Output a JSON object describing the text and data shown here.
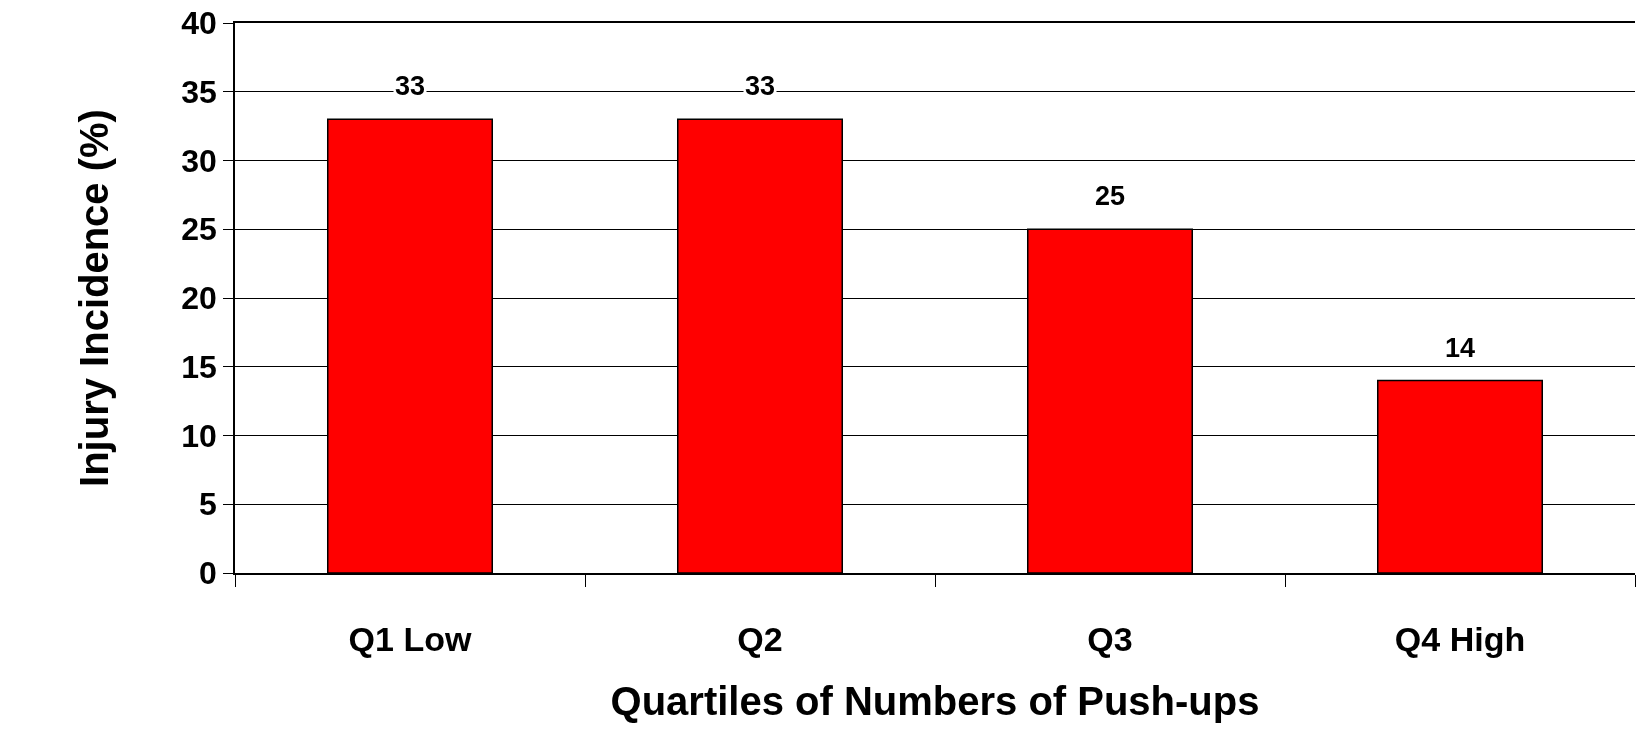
{
  "chart_data": {
    "type": "bar",
    "xlabel": "Quartiles of Numbers of Push-ups",
    "ylabel": "Injury Incidence (%)",
    "categories": [
      "Q1 Low",
      "Q2",
      "Q3",
      "Q4 High"
    ],
    "values": [
      33,
      33,
      25,
      14
    ],
    "color": "#ff0000",
    "ylim": [
      0,
      40
    ],
    "yticks": [
      0,
      5,
      10,
      15,
      20,
      25,
      30,
      35,
      40
    ],
    "grid": "y",
    "data_labels": true
  }
}
